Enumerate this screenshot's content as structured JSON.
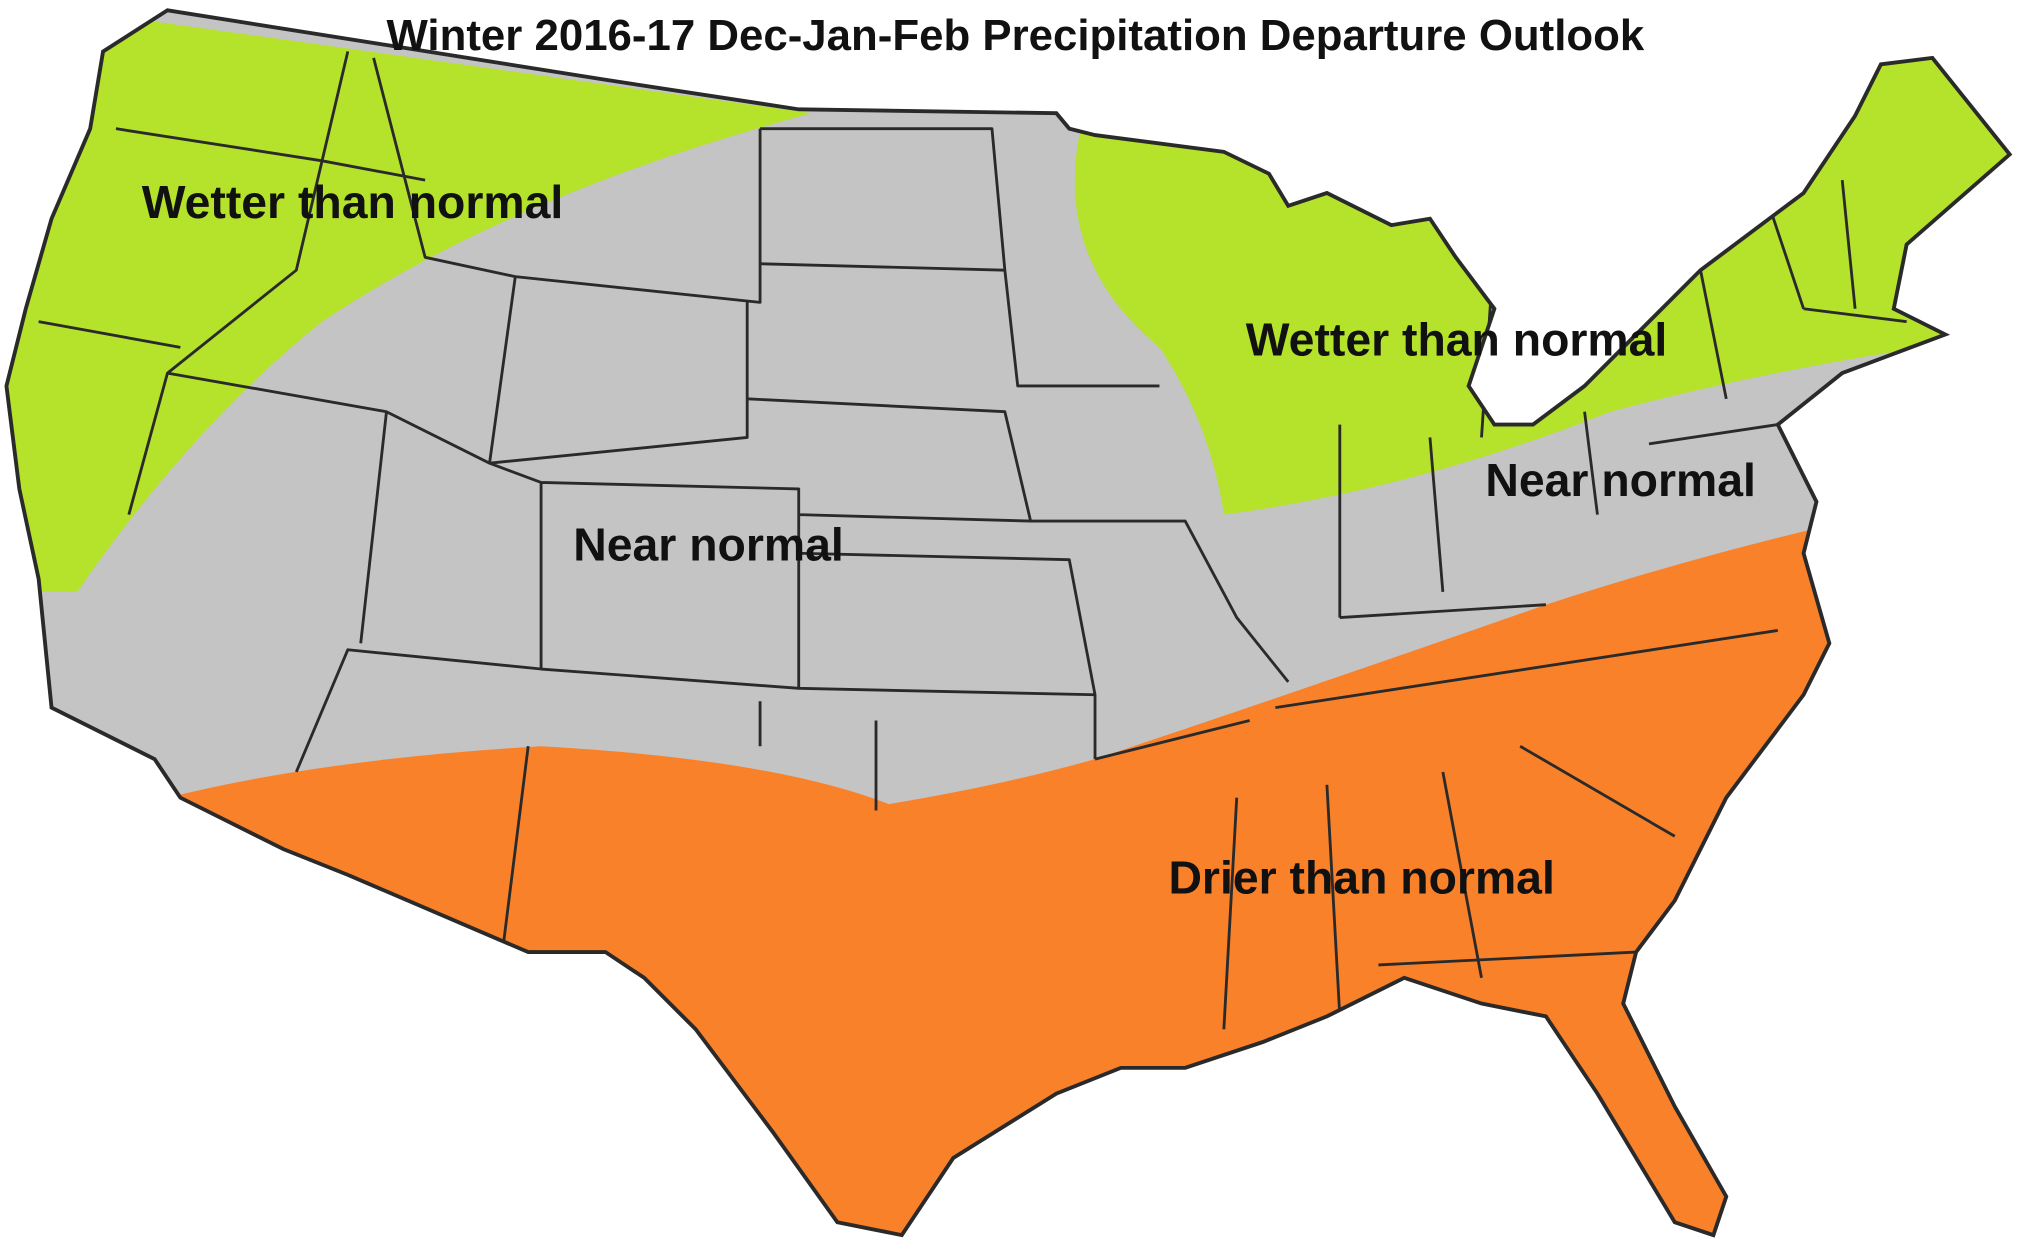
{
  "title": "Winter 2016-17 Dec-Jan-Feb Precipitation Departure Outlook",
  "regions": [
    {
      "label": "Wetter than normal"
    },
    {
      "label": "Wetter than normal"
    },
    {
      "label": "Near normal"
    },
    {
      "label": "Near normal"
    },
    {
      "label": "Drier than normal"
    }
  ]
}
